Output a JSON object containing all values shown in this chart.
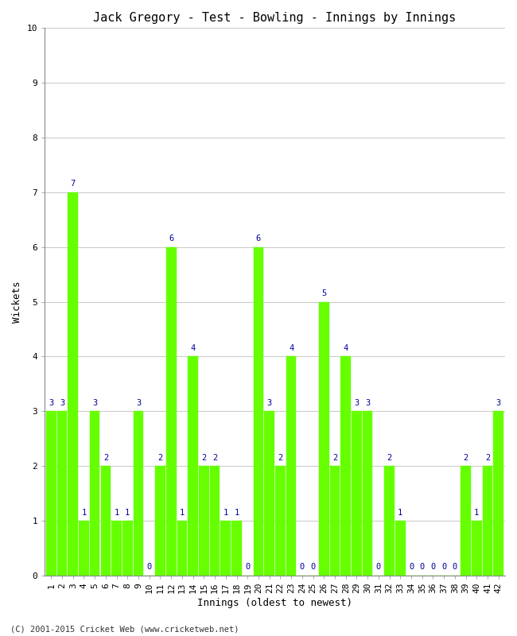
{
  "title": "Jack Gregory - Test - Bowling - Innings by Innings",
  "xlabel": "Innings (oldest to newest)",
  "ylabel": "Wickets",
  "footnote": "(C) 2001-2015 Cricket Web (www.cricketweb.net)",
  "ylim": [
    0,
    10
  ],
  "yticks": [
    0,
    1,
    2,
    3,
    4,
    5,
    6,
    7,
    8,
    9,
    10
  ],
  "bar_color": "#66ff00",
  "bar_edge_color": "#66ff00",
  "label_color": "#000099",
  "categories": [
    "1",
    "2",
    "3",
    "4",
    "5",
    "6",
    "7",
    "8",
    "9",
    "10",
    "11",
    "12",
    "13",
    "14",
    "15",
    "16",
    "17",
    "18",
    "19",
    "20",
    "21",
    "22",
    "23",
    "24",
    "25",
    "26",
    "27",
    "28",
    "29",
    "30",
    "31",
    "32",
    "33",
    "34",
    "35",
    "36",
    "37",
    "38",
    "39",
    "40",
    "41",
    "42"
  ],
  "values": [
    3,
    3,
    7,
    1,
    3,
    2,
    1,
    1,
    3,
    0,
    2,
    6,
    1,
    4,
    2,
    2,
    1,
    1,
    0,
    6,
    3,
    2,
    4,
    0,
    0,
    5,
    2,
    4,
    3,
    3,
    0,
    2,
    1,
    0,
    0,
    0,
    0,
    0,
    2,
    1,
    2,
    3
  ],
  "background_color": "#ffffff",
  "grid_color": "#cccccc",
  "title_fontsize": 11,
  "axis_fontsize": 9,
  "tick_fontsize": 8,
  "label_fontsize": 7.5
}
